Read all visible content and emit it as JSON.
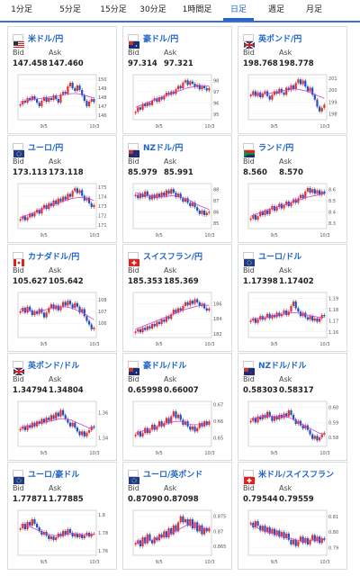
{
  "tabs": [
    {
      "label": "1分足",
      "active": false
    },
    {
      "label": "5分足",
      "active": false
    },
    {
      "label": "15分足",
      "active": false
    },
    {
      "label": "30分足",
      "active": false
    },
    {
      "label": "1時間足",
      "active": false
    },
    {
      "label": "日足",
      "active": true
    },
    {
      "label": "週足",
      "active": false
    },
    {
      "label": "月足",
      "active": false
    }
  ],
  "colors": {
    "up": "#e03030",
    "down": "#2050c0",
    "ma_a": "#d040d0",
    "ma_b": "#6aa0d8",
    "accent": "#2a63c7"
  },
  "bid_label": "Bid",
  "ask_label": "Ask",
  "cards": [
    {
      "name": "米ドル/円",
      "flag": "us-flag",
      "bid": "147.458",
      "ask": "147.460",
      "xticks": [
        "9/5",
        "10/3"
      ],
      "yticks": [
        "150",
        "149",
        "148",
        "147",
        "146"
      ],
      "chart_data": {
        "type": "candlestick",
        "ylim": [
          145.5,
          150.5
        ],
        "closes": [
          147.2,
          147.6,
          147.4,
          147.9,
          147.7,
          148.1,
          147.8,
          147.4,
          147.0,
          147.6,
          148.0,
          147.5,
          147.9,
          147.7,
          148.2,
          147.8,
          147.4,
          148.3,
          148.6,
          148.4,
          149.2,
          149.6,
          149.0,
          148.7,
          149.3,
          148.8,
          148.2,
          147.6,
          147.0,
          147.5,
          147.8,
          147.46
        ],
        "ma": [
          147.5,
          147.6,
          147.7,
          147.8,
          147.9,
          148.0,
          148.1,
          148.2,
          148.3,
          148.4,
          148.4,
          148.3,
          148.1,
          147.9
        ]
      }
    },
    {
      "name": "豪ドル/円",
      "flag": "au-flag",
      "bid": "97.314",
      "ask": "97.321",
      "xticks": [
        "9/5",
        "10/3"
      ],
      "yticks": [
        "98",
        "97",
        "96",
        "95"
      ],
      "chart_data": {
        "type": "candlestick",
        "ylim": [
          94.5,
          98.5
        ],
        "closes": [
          95.2,
          95.6,
          95.4,
          95.9,
          95.7,
          96.0,
          95.8,
          96.2,
          96.4,
          96.1,
          96.5,
          96.3,
          96.6,
          96.9,
          96.7,
          97.0,
          96.8,
          97.2,
          97.5,
          97.3,
          97.8,
          98.0,
          97.6,
          97.9,
          97.7,
          97.4,
          97.6,
          97.2,
          97.5,
          97.3,
          97.1,
          97.31
        ],
        "ma": [
          95.6,
          95.8,
          96.0,
          96.2,
          96.4,
          96.6,
          96.8,
          97.0,
          97.1,
          97.3,
          97.4,
          97.5,
          97.5,
          97.5
        ]
      }
    },
    {
      "name": "英ポンド/円",
      "flag": "uk-flag",
      "bid": "198.768",
      "ask": "198.778",
      "xticks": [
        "9/5",
        "10/3"
      ],
      "yticks": [
        "201",
        "200",
        "199",
        "198"
      ],
      "chart_data": {
        "type": "candlestick",
        "ylim": [
          197.5,
          201.3
        ],
        "closes": [
          199.6,
          199.9,
          199.5,
          199.8,
          199.4,
          199.7,
          199.9,
          199.5,
          199.2,
          199.6,
          199.9,
          199.7,
          200.1,
          199.8,
          199.6,
          200.2,
          200.0,
          200.4,
          200.1,
          200.6,
          200.9,
          200.5,
          200.8,
          200.3,
          199.9,
          200.2,
          199.6,
          199.2,
          198.6,
          198.2,
          198.5,
          198.77
        ],
        "ma": [
          199.6,
          199.6,
          199.7,
          199.7,
          199.8,
          199.9,
          200.0,
          200.1,
          200.1,
          200.0,
          199.9,
          199.7,
          199.5,
          199.3
        ]
      }
    },
    {
      "name": "ユーロ/円",
      "flag": "eu-flag",
      "bid": "173.113",
      "ask": "173.118",
      "xticks": [
        "9/5",
        "10/3"
      ],
      "yticks": [
        "175",
        "174",
        "173",
        "172",
        "171"
      ],
      "chart_data": {
        "type": "candlestick",
        "ylim": [
          170.6,
          175.4
        ],
        "closes": [
          171.6,
          171.9,
          171.5,
          171.8,
          172.2,
          171.9,
          172.3,
          172.6,
          172.2,
          172.8,
          173.1,
          172.7,
          173.3,
          173.0,
          173.6,
          173.2,
          173.8,
          173.5,
          174.0,
          173.7,
          174.3,
          174.0,
          174.6,
          174.9,
          174.4,
          174.7,
          174.1,
          173.6,
          173.9,
          173.3,
          172.9,
          173.11
        ],
        "ma": [
          171.8,
          172.0,
          172.2,
          172.5,
          172.7,
          173.0,
          173.2,
          173.4,
          173.6,
          173.8,
          173.9,
          173.9,
          173.8,
          173.6
        ]
      }
    },
    {
      "name": "NZドル/円",
      "flag": "nz-flag",
      "bid": "85.979",
      "ask": "85.991",
      "xticks": [
        "9/5",
        "10/3"
      ],
      "yticks": [
        "88",
        "87",
        "86",
        "85"
      ],
      "chart_data": {
        "type": "candlestick",
        "ylim": [
          84.5,
          88.5
        ],
        "closes": [
          87.5,
          87.2,
          87.6,
          87.3,
          87.8,
          87.4,
          87.1,
          87.5,
          87.2,
          87.6,
          87.3,
          87.7,
          87.4,
          87.9,
          87.6,
          88.0,
          87.7,
          87.3,
          87.6,
          87.2,
          86.9,
          87.2,
          86.8,
          86.5,
          86.8,
          86.4,
          86.1,
          85.8,
          86.1,
          85.7,
          85.9,
          85.98
        ],
        "ma": [
          87.7,
          87.6,
          87.5,
          87.4,
          87.3,
          87.3,
          87.4,
          87.4,
          87.3,
          87.1,
          86.9,
          86.6,
          86.4,
          86.2
        ]
      }
    },
    {
      "name": "ランド/円",
      "flag": "za-flag",
      "bid": "8.560",
      "ask": "8.570",
      "xticks": [
        "9/5",
        "10/3"
      ],
      "yticks": [
        "8.6",
        "8.5",
        "8.4",
        "8.3"
      ],
      "chart_data": {
        "type": "candlestick",
        "ylim": [
          8.25,
          8.65
        ],
        "closes": [
          8.34,
          8.37,
          8.33,
          8.36,
          8.4,
          8.37,
          8.41,
          8.38,
          8.42,
          8.45,
          8.41,
          8.44,
          8.47,
          8.43,
          8.46,
          8.49,
          8.45,
          8.48,
          8.51,
          8.48,
          8.52,
          8.55,
          8.52,
          8.58,
          8.61,
          8.57,
          8.6,
          8.56,
          8.59,
          8.55,
          8.58,
          8.56
        ],
        "ma": [
          8.36,
          8.38,
          8.4,
          8.42,
          8.43,
          8.45,
          8.46,
          8.48,
          8.5,
          8.51,
          8.53,
          8.54,
          8.55,
          8.56
        ]
      }
    },
    {
      "name": "カナダドル/円",
      "flag": "ca-flag",
      "bid": "105.627",
      "ask": "105.642",
      "xticks": [
        "9/5",
        "10/3"
      ],
      "yticks": [
        "108",
        "107",
        "106"
      ],
      "chart_data": {
        "type": "candlestick",
        "ylim": [
          104.8,
          108.6
        ],
        "closes": [
          107.0,
          107.3,
          106.9,
          107.4,
          107.1,
          106.7,
          107.0,
          106.8,
          107.2,
          106.9,
          106.5,
          106.9,
          107.3,
          107.6,
          107.2,
          107.5,
          107.1,
          107.4,
          107.8,
          107.5,
          107.9,
          107.6,
          107.3,
          107.7,
          107.4,
          106.9,
          107.2,
          106.6,
          106.2,
          105.9,
          105.5,
          105.63
        ],
        "ma": [
          107.2,
          107.1,
          107.0,
          107.0,
          107.1,
          107.2,
          107.3,
          107.4,
          107.4,
          107.3,
          107.1,
          106.9,
          106.6,
          106.3
        ]
      }
    },
    {
      "name": "スイスフラン/円",
      "flag": "ch-flag",
      "bid": "185.353",
      "ask": "185.369",
      "xticks": [
        "9/5",
        "10/3"
      ],
      "yticks": [
        "186",
        "184",
        "182"
      ],
      "chart_data": {
        "type": "candlestick",
        "ylim": [
          181.5,
          187.5
        ],
        "closes": [
          182.3,
          182.6,
          182.2,
          182.8,
          182.5,
          183.0,
          182.7,
          183.3,
          183.0,
          183.6,
          183.3,
          183.9,
          183.6,
          184.3,
          184.0,
          184.6,
          185.2,
          184.8,
          185.4,
          185.1,
          185.7,
          186.2,
          185.8,
          186.4,
          186.0,
          186.6,
          186.2,
          185.7,
          186.0,
          185.4,
          185.1,
          185.35
        ],
        "ma": [
          182.6,
          182.9,
          183.2,
          183.5,
          183.8,
          184.1,
          184.4,
          184.7,
          185.0,
          185.3,
          185.5,
          185.7,
          185.8,
          185.8
        ]
      }
    },
    {
      "name": "ユーロ/ドル",
      "flag": "eu-flag",
      "bid": "1.17398",
      "ask": "1.17402",
      "xticks": [
        "9/5",
        "10/3"
      ],
      "yticks": [
        "1.19",
        "1.18",
        "1.17",
        "1.16"
      ],
      "chart_data": {
        "type": "candlestick",
        "ylim": [
          1.155,
          1.195
        ],
        "closes": [
          1.17,
          1.172,
          1.168,
          1.171,
          1.174,
          1.171,
          1.173,
          1.176,
          1.172,
          1.175,
          1.173,
          1.177,
          1.174,
          1.176,
          1.179,
          1.175,
          1.178,
          1.183,
          1.187,
          1.181,
          1.178,
          1.174,
          1.177,
          1.173,
          1.171,
          1.174,
          1.17,
          1.172,
          1.169,
          1.172,
          1.175,
          1.174
        ],
        "ma": [
          1.171,
          1.172,
          1.172,
          1.173,
          1.174,
          1.175,
          1.176,
          1.177,
          1.177,
          1.176,
          1.175,
          1.174,
          1.173,
          1.173
        ]
      }
    },
    {
      "name": "英ポンド/ドル",
      "flag": "uk-flag",
      "bid": "1.34794",
      "ask": "1.34804",
      "xticks": [
        "9/5",
        "10/3"
      ],
      "yticks": [
        "1.36",
        "1.34"
      ],
      "chart_data": {
        "type": "candlestick",
        "ylim": [
          1.333,
          1.369
        ],
        "closes": [
          1.347,
          1.349,
          1.346,
          1.35,
          1.348,
          1.352,
          1.349,
          1.353,
          1.351,
          1.355,
          1.352,
          1.356,
          1.354,
          1.358,
          1.355,
          1.36,
          1.357,
          1.362,
          1.358,
          1.355,
          1.352,
          1.349,
          1.352,
          1.348,
          1.345,
          1.342,
          1.345,
          1.341,
          1.344,
          1.346,
          1.349,
          1.348
        ],
        "ma": [
          1.348,
          1.349,
          1.35,
          1.351,
          1.352,
          1.353,
          1.354,
          1.355,
          1.355,
          1.354,
          1.352,
          1.35,
          1.348,
          1.347
        ]
      }
    },
    {
      "name": "豪ドル/ドル",
      "flag": "au-flag",
      "bid": "0.65998",
      "ask": "0.66007",
      "xticks": [
        "9/5",
        "10/3"
      ],
      "yticks": [
        "0.67",
        "0.66",
        "0.65"
      ],
      "chart_data": {
        "type": "candlestick",
        "ylim": [
          0.645,
          0.672
        ],
        "closes": [
          0.652,
          0.654,
          0.651,
          0.653,
          0.656,
          0.653,
          0.655,
          0.658,
          0.655,
          0.657,
          0.66,
          0.657,
          0.659,
          0.662,
          0.659,
          0.663,
          0.666,
          0.662,
          0.664,
          0.661,
          0.658,
          0.66,
          0.657,
          0.655,
          0.657,
          0.654,
          0.656,
          0.659,
          0.657,
          0.66,
          0.658,
          0.66
        ],
        "ma": [
          0.653,
          0.654,
          0.655,
          0.656,
          0.657,
          0.658,
          0.659,
          0.66,
          0.66,
          0.659,
          0.658,
          0.658,
          0.658,
          0.658
        ]
      }
    },
    {
      "name": "NZドル/ドル",
      "flag": "nz-flag",
      "bid": "0.58303",
      "ask": "0.58317",
      "xticks": [
        "9/5",
        "10/3"
      ],
      "yticks": [
        "0.60",
        "0.59",
        "0.58"
      ],
      "chart_data": {
        "type": "candlestick",
        "ylim": [
          0.574,
          0.604
        ],
        "closes": [
          0.591,
          0.593,
          0.59,
          0.594,
          0.592,
          0.595,
          0.593,
          0.597,
          0.594,
          0.591,
          0.594,
          0.592,
          0.595,
          0.593,
          0.596,
          0.594,
          0.598,
          0.595,
          0.592,
          0.589,
          0.591,
          0.588,
          0.586,
          0.588,
          0.585,
          0.582,
          0.579,
          0.581,
          0.578,
          0.58,
          0.582,
          0.583
        ],
        "ma": [
          0.592,
          0.593,
          0.594,
          0.594,
          0.594,
          0.594,
          0.594,
          0.593,
          0.591,
          0.589,
          0.587,
          0.585,
          0.583,
          0.582
        ]
      }
    },
    {
      "name": "ユーロ/豪ドル",
      "flag": "eu-flag",
      "bid": "1.77871",
      "ask": "1.77885",
      "xticks": [
        "9/5",
        "10/3"
      ],
      "yticks": [
        "1.8",
        "1.78",
        "1.76"
      ],
      "chart_data": {
        "type": "candlestick",
        "ylim": [
          1.755,
          1.805
        ],
        "closes": [
          1.785,
          1.79,
          1.784,
          1.792,
          1.788,
          1.795,
          1.79,
          1.786,
          1.782,
          1.778,
          1.781,
          1.777,
          1.773,
          1.776,
          1.772,
          1.775,
          1.779,
          1.776,
          1.782,
          1.778,
          1.784,
          1.78,
          1.776,
          1.779,
          1.775,
          1.778,
          1.774,
          1.777,
          1.78,
          1.776,
          1.779,
          1.779
        ],
        "ma": [
          1.789,
          1.788,
          1.786,
          1.783,
          1.78,
          1.778,
          1.777,
          1.777,
          1.778,
          1.779,
          1.779,
          1.778,
          1.778,
          1.778
        ]
      }
    },
    {
      "name": "ユーロ/英ポンド",
      "flag": "eu-flag",
      "bid": "0.87090",
      "ask": "0.87098",
      "xticks": [
        "9/5",
        "10/3"
      ],
      "yticks": [
        "0.875",
        "0.87",
        "0.865"
      ],
      "chart_data": {
        "type": "candlestick",
        "ylim": [
          0.862,
          0.877
        ],
        "closes": [
          0.866,
          0.867,
          0.865,
          0.868,
          0.866,
          0.869,
          0.867,
          0.866,
          0.868,
          0.867,
          0.869,
          0.868,
          0.87,
          0.868,
          0.871,
          0.869,
          0.872,
          0.87,
          0.873,
          0.875,
          0.873,
          0.874,
          0.872,
          0.874,
          0.871,
          0.873,
          0.87,
          0.872,
          0.869,
          0.871,
          0.87,
          0.871
        ],
        "ma": [
          0.866,
          0.866,
          0.867,
          0.867,
          0.868,
          0.868,
          0.869,
          0.87,
          0.871,
          0.872,
          0.872,
          0.872,
          0.871,
          0.871
        ]
      }
    },
    {
      "name": "米ドル/スイスフラン",
      "flag": "ch-flag",
      "bid": "0.79544",
      "ask": "0.79559",
      "xticks": [
        "9/5",
        "10/3"
      ],
      "yticks": [
        "0.81",
        "0.80",
        "0.79"
      ],
      "chart_data": {
        "type": "candlestick",
        "ylim": [
          0.785,
          0.814
        ],
        "closes": [
          0.806,
          0.803,
          0.807,
          0.804,
          0.801,
          0.804,
          0.8,
          0.803,
          0.799,
          0.802,
          0.798,
          0.801,
          0.797,
          0.8,
          0.796,
          0.799,
          0.795,
          0.792,
          0.795,
          0.791,
          0.794,
          0.797,
          0.793,
          0.796,
          0.792,
          0.795,
          0.798,
          0.794,
          0.797,
          0.793,
          0.796,
          0.795
        ],
        "ma": [
          0.805,
          0.803,
          0.801,
          0.8,
          0.799,
          0.798,
          0.797,
          0.796,
          0.795,
          0.794,
          0.794,
          0.795,
          0.795,
          0.795
        ]
      }
    }
  ]
}
